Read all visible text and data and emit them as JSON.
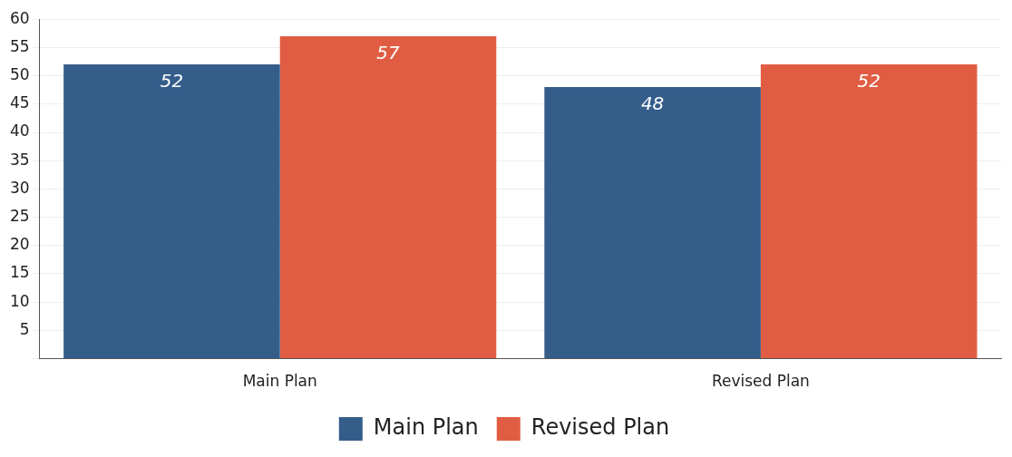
{
  "chart_data": {
    "type": "bar",
    "categories": [
      "Main Plan",
      "Revised Plan"
    ],
    "series": [
      {
        "name": "Main Plan",
        "color": "#345d8a",
        "values": [
          52,
          48
        ]
      },
      {
        "name": "Revised Plan",
        "color": "#e05d43",
        "values": [
          57,
          52
        ]
      }
    ],
    "ylim": [
      0,
      60
    ],
    "yticks": [
      {
        "value": 0,
        "label": null
      },
      5,
      10,
      15,
      20,
      25,
      30,
      35,
      40,
      45,
      50,
      55,
      60
    ],
    "grid": "y",
    "legend": "bottom",
    "data_labels": true
  }
}
